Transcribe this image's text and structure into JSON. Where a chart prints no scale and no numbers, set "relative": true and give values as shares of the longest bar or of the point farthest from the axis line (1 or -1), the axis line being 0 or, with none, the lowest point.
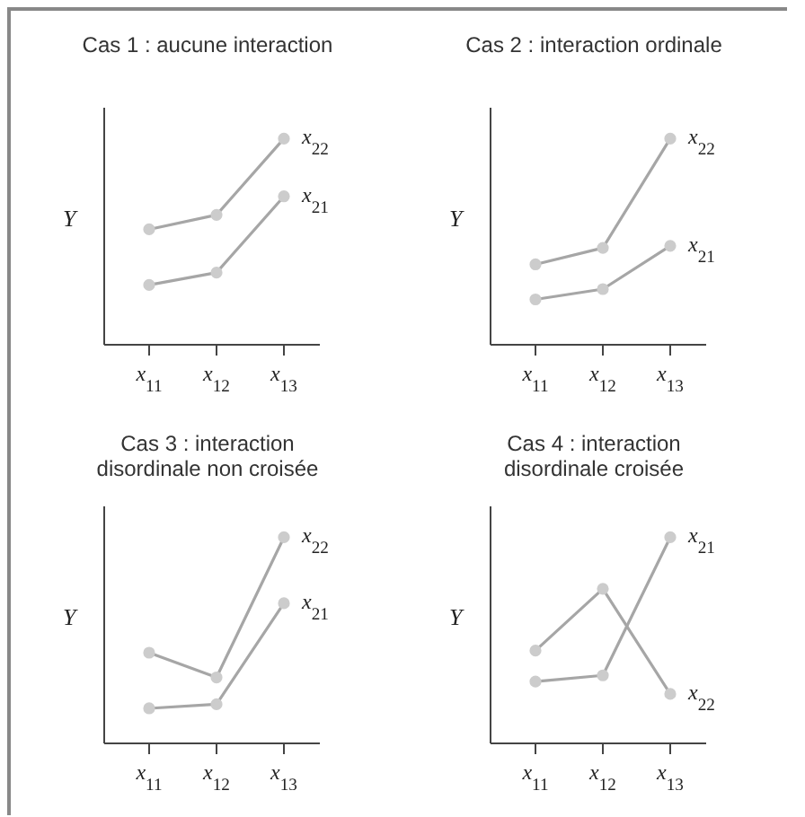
{
  "chart_data": [
    {
      "type": "line",
      "title": "Cas 1 : aucune interaction",
      "ylabel": "Y",
      "categories": [
        "x$_{11}$",
        "x$_{12}$",
        "x$_{13}$"
      ],
      "relative": true,
      "marker": "circle",
      "legend": false,
      "series": [
        {
          "name": "x$_{22}$",
          "color": "#a6a6a6",
          "values": [
            0.56,
            0.63,
            1
          ]
        },
        {
          "name": "x$_{21}$",
          "color": "#a6a6a6",
          "values": [
            0.29,
            0.35,
            0.72
          ]
        }
      ]
    },
    {
      "type": "line",
      "title": "Cas 2 : interaction ordinale",
      "ylabel": "Y",
      "categories": [
        "x$_{11}$",
        "x$_{12}$",
        "x$_{13}$"
      ],
      "relative": true,
      "marker": "circle",
      "legend": false,
      "series": [
        {
          "name": "x$_{22}$",
          "color": "#a6a6a6",
          "values": [
            0.39,
            0.47,
            1
          ]
        },
        {
          "name": "x$_{21}$",
          "color": "#a6a6a6",
          "values": [
            0.22,
            0.27,
            0.48
          ]
        }
      ]
    },
    {
      "type": "line",
      "title": "Cas 3 : interaction disordinale non croisée",
      "ylabel": "Y",
      "categories": [
        "x$_{11}$",
        "x$_{12}$",
        "x$_{13}$"
      ],
      "relative": true,
      "marker": "circle",
      "legend": false,
      "series": [
        {
          "name": "x$_{22}$",
          "color": "#a6a6a6",
          "values": [
            0.44,
            0.32,
            1
          ]
        },
        {
          "name": "x$_{21}$",
          "color": "#a6a6a6",
          "values": [
            0.17,
            0.19,
            0.68
          ]
        }
      ]
    },
    {
      "type": "line",
      "title": "Cas 4 : interaction disordinale croisée",
      "ylabel": "Y",
      "categories": [
        "x$_{11}$",
        "x$_{12}$",
        "x$_{13}$"
      ],
      "relative": true,
      "marker": "circle",
      "legend": false,
      "series": [
        {
          "name": "x$_{21}$",
          "color": "#a6a6a6",
          "values": [
            0.3,
            0.33,
            1
          ]
        },
        {
          "name": "x$_{22}$",
          "color": "#a6a6a6",
          "values": [
            0.45,
            0.75,
            0.24
          ]
        }
      ]
    }
  ]
}
